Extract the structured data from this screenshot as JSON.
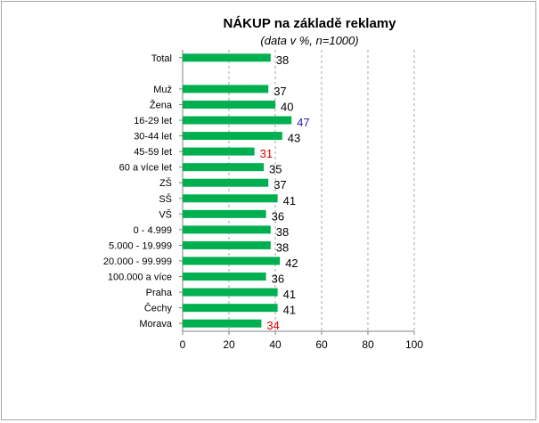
{
  "chart_data": {
    "type": "bar",
    "orientation": "horizontal",
    "title": "NÁKUP na základě reklamy",
    "subtitle": "(data v %, n=1000)",
    "categories": [
      "Total",
      "",
      "Muž",
      "Žena",
      "16-29 let",
      "30-44 let",
      "45-59 let",
      "60 a více let",
      "ZŠ",
      "SŠ",
      "VŠ",
      "0 - 4.999",
      "5.000 - 19.999",
      "20.000 - 99.999",
      "100.000 a více",
      "Praha",
      "Čechy",
      "Morava"
    ],
    "values": [
      38,
      null,
      37,
      40,
      47,
      43,
      31,
      35,
      37,
      41,
      36,
      38,
      38,
      42,
      36,
      41,
      41,
      34
    ],
    "value_labels": [
      "38",
      "",
      "37",
      "40",
      "47",
      "43",
      "31",
      "35",
      "37",
      "41",
      "36",
      "38",
      "38",
      "42",
      "36",
      "41",
      "41",
      "34"
    ],
    "label_colors": [
      "#000000",
      "#000000",
      "#000000",
      "#000000",
      "#1f1fbf",
      "#000000",
      "#e00000",
      "#000000",
      "#000000",
      "#000000",
      "#000000",
      "#000000",
      "#000000",
      "#000000",
      "#000000",
      "#000000",
      "#000000",
      "#e00000"
    ],
    "xlim": [
      0,
      100
    ],
    "x_ticks": [
      "0",
      "20",
      "40",
      "60",
      "80",
      "100"
    ],
    "bar_color": "#00b050",
    "grid": "vertical dashed"
  }
}
